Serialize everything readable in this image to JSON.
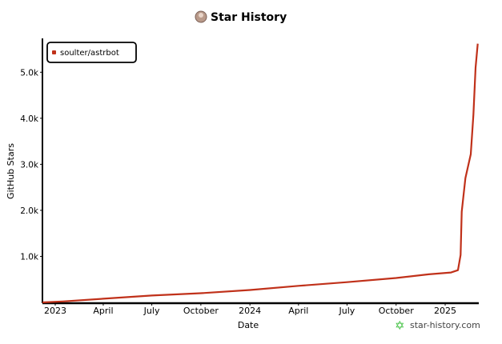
{
  "chart_data": {
    "type": "line",
    "title": "Star History",
    "xlabel": "Date",
    "ylabel": "GitHub Stars",
    "x_tick_labels": [
      "2023",
      "April",
      "July",
      "October",
      "2024",
      "April",
      "July",
      "October",
      "2025"
    ],
    "x_tick_dates": [
      "2023-01-01",
      "2023-04-01",
      "2023-07-01",
      "2023-10-01",
      "2024-01-01",
      "2024-04-01",
      "2024-07-01",
      "2024-10-01",
      "2025-01-01"
    ],
    "y_tick_labels": [
      "1.0k",
      "2.0k",
      "3.0k",
      "4.0k",
      "5.0k"
    ],
    "y_tick_values": [
      1000,
      2000,
      3000,
      4000,
      5000
    ],
    "xlim": [
      "2022-12-08",
      "2025-03-05"
    ],
    "ylim": [
      0,
      5700
    ],
    "grid": false,
    "legend_placement": "top-left",
    "series": [
      {
        "name": "soulter/astrbot",
        "color": "#c0311a",
        "x": [
          "2022-12-08",
          "2023-01-15",
          "2023-04-01",
          "2023-07-01",
          "2023-10-01",
          "2024-01-01",
          "2024-04-01",
          "2024-07-01",
          "2024-10-01",
          "2024-12-01",
          "2025-01-12",
          "2025-01-25",
          "2025-01-30",
          "2025-02-01",
          "2025-02-08",
          "2025-02-18",
          "2025-02-23",
          "2025-02-27",
          "2025-03-03"
        ],
        "y": [
          0,
          20,
          80,
          150,
          200,
          270,
          360,
          440,
          530,
          610,
          650,
          700,
          1030,
          1970,
          2700,
          3220,
          4080,
          5100,
          5620
        ]
      }
    ]
  },
  "watermark": {
    "text": "star-history.com",
    "icon": "star-icon",
    "color": "#3cbf3c"
  },
  "title_icon": "avatar-icon"
}
